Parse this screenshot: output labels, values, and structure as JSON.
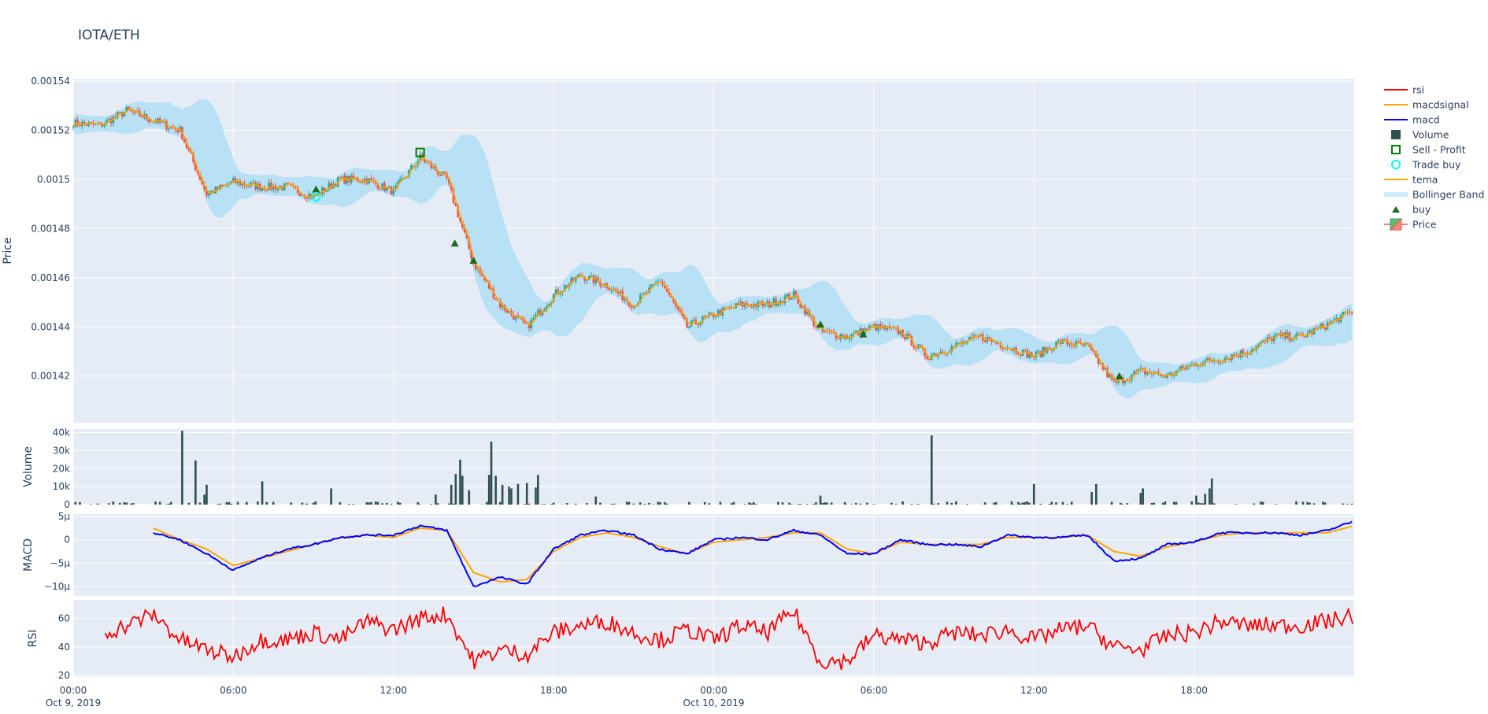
{
  "title": "IOTA/ETH",
  "colors": {
    "plot_bg": "#e5ecf6",
    "increasing": "#26a69a",
    "decreasing": "#ef5350",
    "bollinger": "#b3e0f6",
    "tema": "#ffa500",
    "macd": "#0000ff",
    "macdsignal": "#ffa500",
    "rsi": "#ff0000",
    "volume": "#2f4f4f",
    "buy": "#1a6b1a",
    "sell_profit": "#008000",
    "trade_buy": "#00ffff"
  },
  "legend": {
    "placement": "right",
    "items": [
      {
        "label": "rsi",
        "icon": "line-red"
      },
      {
        "label": "macdsignal",
        "icon": "line-orange"
      },
      {
        "label": "macd",
        "icon": "line-blue"
      },
      {
        "label": "Volume",
        "icon": "square-darkslate"
      },
      {
        "label": "Sell - Profit",
        "icon": "square-open-green"
      },
      {
        "label": "Trade buy",
        "icon": "circle-open-cyan"
      },
      {
        "label": "tema",
        "icon": "line-orange"
      },
      {
        "label": "Bollinger Band",
        "icon": "band-lightblue"
      },
      {
        "label": "buy",
        "icon": "triangle-up-green"
      },
      {
        "label": "Price",
        "icon": "candlestick"
      }
    ]
  },
  "chart_data": [
    {
      "type": "candlestick",
      "ylabel": "Price",
      "ylim": [
        0.001401,
        0.001541
      ],
      "yticks": [
        "0.00154",
        "0.00152",
        "0.0015",
        "0.00148",
        "0.00146",
        "0.00144",
        "0.00142"
      ],
      "ytick_values": [
        0.00154,
        0.00152,
        0.0015,
        0.00148,
        0.00146,
        0.00144,
        0.00142
      ],
      "x_hours_from_start": [
        0,
        1,
        2,
        3,
        4,
        5,
        6,
        7,
        8,
        9,
        10,
        11,
        12,
        13,
        14,
        15,
        16,
        17,
        18,
        19,
        20,
        21,
        22,
        23,
        24,
        25,
        26,
        27,
        28,
        29,
        30,
        31,
        32,
        33,
        34,
        35,
        36,
        37,
        38,
        39,
        40,
        41,
        42,
        43,
        44,
        45,
        46,
        47,
        48
      ],
      "close": [
        0.001523,
        0.001522,
        0.001528,
        0.001524,
        0.00152,
        0.001494,
        0.001499,
        0.001497,
        0.001497,
        0.001493,
        0.0015,
        0.0015,
        0.001495,
        0.001509,
        0.0015,
        0.001466,
        0.001449,
        0.00144,
        0.001453,
        0.001461,
        0.001457,
        0.001449,
        0.001459,
        0.00144,
        0.001445,
        0.001449,
        0.001449,
        0.001453,
        0.001438,
        0.001436,
        0.00144,
        0.001438,
        0.001428,
        0.001432,
        0.001436,
        0.001432,
        0.001428,
        0.001434,
        0.001432,
        0.001417,
        0.001422,
        0.00142,
        0.001425,
        0.001427,
        0.00143,
        0.001436,
        0.001436,
        0.001441,
        0.001447
      ],
      "buy": [
        [
          9.1,
          0.001496
        ],
        [
          14.3,
          0.001474
        ],
        [
          15.0,
          0.001467
        ],
        [
          28.0,
          0.001441
        ],
        [
          29.6,
          0.001437
        ],
        [
          39.2,
          0.00142
        ]
      ],
      "sell_profit": [
        [
          13.0,
          0.001511
        ]
      ],
      "trade_buy": [
        [
          9.1,
          0.001493
        ]
      ]
    },
    {
      "type": "bar",
      "ylabel": "Volume",
      "ylim": [
        0,
        42000
      ],
      "yticks": [
        "0",
        "10k",
        "20k",
        "30k",
        "40k"
      ],
      "ytick_values": [
        0,
        10000,
        20000,
        30000,
        40000
      ],
      "spikes": [
        [
          4.1,
          41000
        ],
        [
          4.6,
          24500
        ],
        [
          4.9,
          5500
        ],
        [
          5.0,
          11000
        ],
        [
          7.05,
          13000
        ],
        [
          9.7,
          9000
        ],
        [
          13.6,
          5500
        ],
        [
          14.2,
          11000
        ],
        [
          14.35,
          17000
        ],
        [
          14.5,
          25000
        ],
        [
          14.6,
          16000
        ],
        [
          14.8,
          8000
        ],
        [
          15.6,
          16500
        ],
        [
          15.7,
          35000
        ],
        [
          15.8,
          16000
        ],
        [
          16.1,
          11000
        ],
        [
          16.3,
          10000
        ],
        [
          16.45,
          9000
        ],
        [
          16.7,
          11500
        ],
        [
          17.0,
          12000
        ],
        [
          17.3,
          9500
        ],
        [
          17.4,
          16500
        ],
        [
          19.6,
          4500
        ],
        [
          28.0,
          5000
        ],
        [
          32.2,
          38500
        ],
        [
          36.0,
          11500
        ],
        [
          38.2,
          7000
        ],
        [
          38.35,
          11500
        ],
        [
          40.0,
          6500
        ],
        [
          40.1,
          9000
        ],
        [
          42.1,
          5000
        ],
        [
          42.4,
          6000
        ],
        [
          42.6,
          9000
        ],
        [
          42.7,
          14500
        ]
      ]
    },
    {
      "type": "line",
      "ylabel": "MACD",
      "ylim": [
        -1.2e-05,
        5.5e-06
      ],
      "yticks": [
        "5μ",
        "0",
        "−5μ",
        "−10μ"
      ],
      "ytick_values": [
        5e-06,
        0,
        -5e-06,
        -1e-05
      ],
      "x_hours_from_start": [
        3,
        4,
        5,
        6,
        7,
        8,
        9,
        10,
        11,
        12,
        13,
        14,
        15,
        16,
        17,
        18,
        19,
        20,
        21,
        22,
        23,
        24,
        25,
        26,
        27,
        28,
        29,
        30,
        31,
        32,
        33,
        34,
        35,
        36,
        37,
        38,
        39,
        40,
        41,
        42,
        43,
        44,
        45,
        46,
        47,
        48
      ],
      "series": [
        {
          "name": "macd",
          "values_micro": [
            1.5,
            0,
            -3,
            -6.5,
            -4,
            -2,
            -1,
            0.5,
            1,
            1,
            3,
            2,
            -10,
            -8,
            -9.5,
            -2,
            1,
            2,
            1,
            -2,
            -3,
            0,
            0.5,
            0,
            2,
            1,
            -3,
            -3,
            0,
            -1,
            -1,
            -1.5,
            1,
            0.5,
            0.5,
            1,
            -4.5,
            -4,
            -1,
            -0.5,
            1.5,
            1.5,
            1.5,
            1,
            2,
            4
          ]
        },
        {
          "name": "macdsignal",
          "values_micro": [
            2.5,
            0,
            -2,
            -5.5,
            -4,
            -2.5,
            -1,
            0.5,
            1,
            0.5,
            2.5,
            2,
            -7,
            -9,
            -8.5,
            -2.5,
            0.5,
            1.5,
            0.5,
            -1.5,
            -3,
            -0.5,
            0,
            0.5,
            1.5,
            1.5,
            -2,
            -3,
            -0.5,
            -1,
            -1,
            -1,
            0.5,
            0.5,
            0.5,
            1,
            -2.5,
            -3.5,
            -1.5,
            -0.5,
            1,
            1.5,
            1.5,
            1.5,
            1.5,
            3
          ]
        }
      ]
    },
    {
      "type": "line",
      "ylabel": "RSI",
      "ylim": [
        19,
        73
      ],
      "yticks": [
        "20",
        "40",
        "60"
      ],
      "ytick_values": [
        20,
        40,
        60
      ],
      "x_hours_from_start": [
        1.2,
        2,
        3,
        4,
        5,
        6,
        7,
        8,
        9,
        10,
        11,
        12,
        13,
        14,
        15,
        16,
        17,
        18,
        19,
        20,
        21,
        22,
        23,
        24,
        25,
        26,
        27,
        28,
        29,
        30,
        31,
        32,
        33,
        34,
        35,
        36,
        37,
        38,
        39,
        40,
        41,
        42,
        43,
        44,
        45,
        46,
        47,
        48
      ],
      "series": [
        {
          "name": "rsi",
          "values": [
            50,
            55,
            63,
            45,
            38,
            33,
            45,
            45,
            50,
            45,
            58,
            52,
            60,
            63,
            30,
            38,
            35,
            50,
            55,
            58,
            50,
            45,
            52,
            45,
            55,
            50,
            65,
            30,
            30,
            48,
            45,
            43,
            50,
            48,
            52,
            45,
            52,
            55,
            40,
            38,
            48,
            50,
            58,
            55,
            55,
            55,
            58,
            62
          ]
        }
      ]
    }
  ],
  "xaxis": {
    "ticks": [
      {
        "hour": 0,
        "label": "00:00",
        "sub": "Oct 9, 2019"
      },
      {
        "hour": 6,
        "label": "06:00",
        "sub": ""
      },
      {
        "hour": 12,
        "label": "12:00",
        "sub": ""
      },
      {
        "hour": 18,
        "label": "18:00",
        "sub": ""
      },
      {
        "hour": 24,
        "label": "00:00",
        "sub": "Oct 10, 2019"
      },
      {
        "hour": 30,
        "label": "06:00",
        "sub": ""
      },
      {
        "hour": 36,
        "label": "12:00",
        "sub": ""
      },
      {
        "hour": 42,
        "label": "18:00",
        "sub": ""
      }
    ],
    "range_hours": [
      0,
      48
    ]
  }
}
